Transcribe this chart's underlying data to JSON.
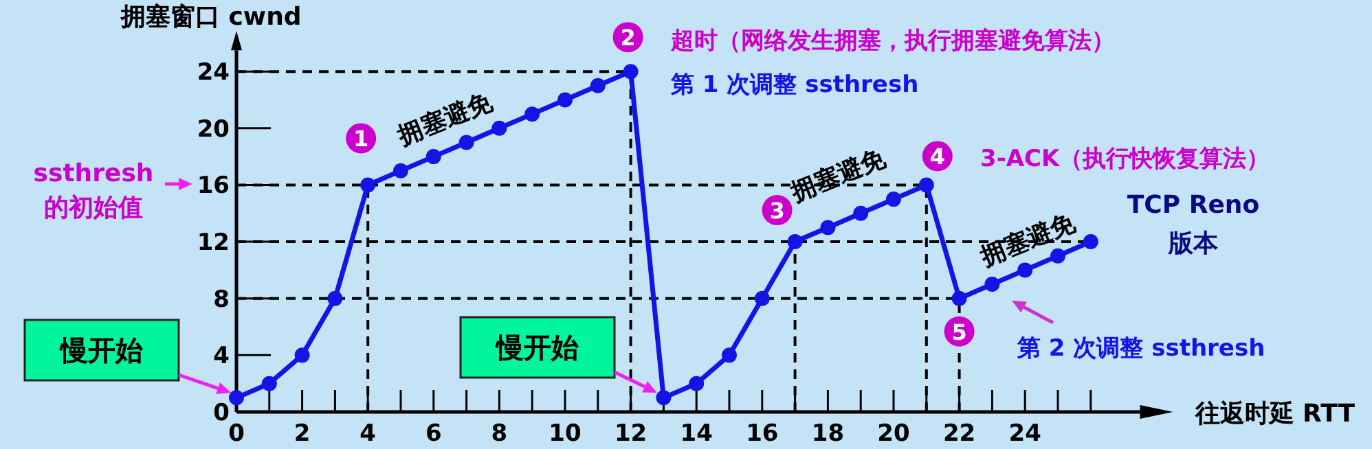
{
  "chart_data": {
    "type": "line",
    "xlabel": "往返时延 RTT",
    "ylabel": "拥塞窗口 cwnd",
    "x": [
      0,
      1,
      2,
      3,
      4,
      5,
      6,
      7,
      8,
      9,
      10,
      11,
      12,
      13,
      14,
      15,
      16,
      17,
      18,
      19,
      20,
      21,
      22,
      23,
      24,
      25,
      26
    ],
    "series": [
      {
        "color": "#1414e6",
        "values": [
          1,
          2,
          4,
          8,
          16,
          17,
          18,
          19,
          20,
          21,
          22,
          23,
          24,
          1,
          2,
          4,
          8,
          12,
          13,
          14,
          15,
          16,
          8,
          9,
          10,
          11,
          12
        ]
      }
    ],
    "marker": "circle",
    "line_style": "solid",
    "xlim": [
      0,
      27.5
    ],
    "ylim": [
      0,
      25.5
    ],
    "xticks": [
      0,
      {
        "value": 1,
        "label": null
      },
      2,
      {
        "value": 3,
        "label": null
      },
      4,
      {
        "value": 5,
        "label": null
      },
      6,
      {
        "value": 7,
        "label": null
      },
      8,
      {
        "value": 9,
        "label": null
      },
      10,
      {
        "value": 11,
        "label": null
      },
      12,
      {
        "value": 13,
        "label": null
      },
      14,
      {
        "value": 15,
        "label": null
      },
      16,
      {
        "value": 17,
        "label": null
      },
      18,
      {
        "value": 19,
        "label": null
      },
      20,
      {
        "value": 21,
        "label": null
      },
      22,
      {
        "value": 23,
        "label": null
      },
      24,
      {
        "value": 25,
        "label": null
      },
      {
        "value": 26,
        "label": null
      }
    ],
    "yticks": [
      0,
      4,
      8,
      12,
      16,
      20,
      24
    ],
    "ref_lines": [
      {
        "axis": "y",
        "value": 24,
        "line_style": "dashed",
        "color": "#000000"
      },
      {
        "axis": "y",
        "value": 16,
        "line_style": "dashed",
        "color": "#000000"
      },
      {
        "axis": "y",
        "value": 12,
        "line_style": "dashed",
        "color": "#000000"
      },
      {
        "axis": "y",
        "value": 8,
        "line_style": "dashed",
        "color": "#000000"
      },
      {
        "axis": "x",
        "value": 4,
        "line_style": "dashed",
        "color": "#000000"
      },
      {
        "axis": "x",
        "value": 12,
        "line_style": "dashed",
        "color": "#000000"
      },
      {
        "axis": "x",
        "value": 17,
        "line_style": "dashed",
        "color": "#000000"
      },
      {
        "axis": "x",
        "value": 21,
        "line_style": "dashed",
        "color": "#000000"
      },
      {
        "axis": "x",
        "value": 22,
        "line_style": "dashed",
        "color": "#000000"
      }
    ],
    "annotations": [
      "慢开始",
      "慢开始",
      "ssthresh\n的初始值",
      {
        "text": "1",
        "x": 4,
        "y": 16
      },
      {
        "text": "2",
        "x": 12,
        "y": 24
      },
      {
        "text": "3",
        "x": 17,
        "y": 12
      },
      {
        "text": "4",
        "x": 21,
        "y": 16
      },
      {
        "text": "5",
        "x": 22,
        "y": 8
      },
      "拥塞避免",
      "拥塞避免",
      "拥塞避免",
      "超时（网络发生拥塞，执行拥塞避免算法）",
      "第 1 次调整 ssthresh",
      "3-ACK（执行快恢复算法）",
      "TCP Reno\n版本",
      "第 2 次调整 ssthresh"
    ]
  }
}
